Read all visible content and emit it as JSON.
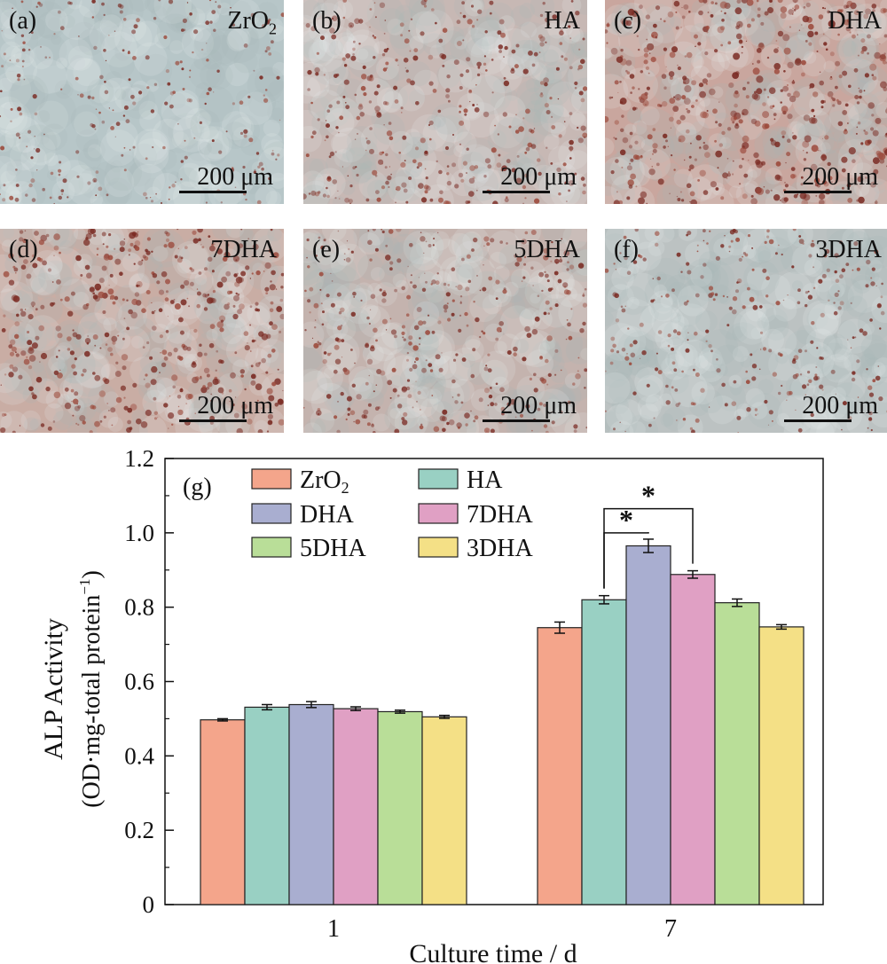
{
  "micrographs": [
    {
      "label": "(a)",
      "sample": "ZrO",
      "sample_sub": "2",
      "tint": "#b7c6c8",
      "stain": 0.25,
      "scale_text": "200 μm"
    },
    {
      "label": "(b)",
      "sample": "HA",
      "sample_sub": "",
      "tint": "#c7b8b4",
      "stain": 0.55,
      "scale_text": "200 μm"
    },
    {
      "label": "(c)",
      "sample": "DHA",
      "sample_sub": "",
      "tint": "#c9a69e",
      "stain": 0.85,
      "scale_text": "200 μm"
    },
    {
      "label": "(d)",
      "sample": "7DHA",
      "sample_sub": "",
      "tint": "#c9ada4",
      "stain": 0.75,
      "scale_text": "200 μm"
    },
    {
      "label": "(e)",
      "sample": "5DHA",
      "sample_sub": "",
      "tint": "#c4b3ae",
      "stain": 0.55,
      "scale_text": "200 μm"
    },
    {
      "label": "(f)",
      "sample": "3DHA",
      "sample_sub": "",
      "tint": "#bcc2c2",
      "stain": 0.35,
      "scale_text": "200 μm"
    }
  ],
  "chart_data": {
    "type": "bar",
    "panel_label": "(g)",
    "xlabel": "Culture time / d",
    "ylabel_line1": "ALP Activity",
    "ylabel_line2": "(OD·mg-total protein",
    "ylabel_sup": "−1",
    "ylabel_close": ")",
    "categories": [
      "1",
      "7"
    ],
    "ylim": [
      0,
      1.2
    ],
    "yticks": [
      0,
      0.2,
      0.4,
      0.6,
      0.8,
      1.0,
      1.2
    ],
    "ytick_labels": [
      "0",
      "0.2",
      "0.4",
      "0.6",
      "0.8",
      "1.0",
      "1.2"
    ],
    "legend_position": "top-left",
    "series": [
      {
        "name": "ZrO",
        "name_sub": "2",
        "color": "#f4a58b",
        "values": [
          0.497,
          0.745
        ],
        "errors": [
          0.003,
          0.015
        ]
      },
      {
        "name": "HA",
        "name_sub": "",
        "color": "#99d0c3",
        "values": [
          0.531,
          0.82
        ],
        "errors": [
          0.007,
          0.011
        ]
      },
      {
        "name": "DHA",
        "name_sub": "",
        "color": "#a9aed0",
        "values": [
          0.538,
          0.965
        ],
        "errors": [
          0.008,
          0.018
        ]
      },
      {
        "name": "7DHA",
        "name_sub": "",
        "color": "#e0a0c4",
        "values": [
          0.527,
          0.888
        ],
        "errors": [
          0.005,
          0.01
        ]
      },
      {
        "name": "5DHA",
        "name_sub": "",
        "color": "#b9de98",
        "values": [
          0.519,
          0.812
        ],
        "errors": [
          0.004,
          0.01
        ]
      },
      {
        "name": "3DHA",
        "name_sub": "",
        "color": "#f4e086",
        "values": [
          0.505,
          0.747
        ],
        "errors": [
          0.004,
          0.006
        ]
      }
    ],
    "significance": [
      {
        "label": "*",
        "category": "7",
        "from_series": 1,
        "to_series": 2,
        "level": 1.0
      },
      {
        "label": "*",
        "category": "7",
        "from_series": 1,
        "to_series": 3,
        "level": 1.065
      }
    ]
  }
}
